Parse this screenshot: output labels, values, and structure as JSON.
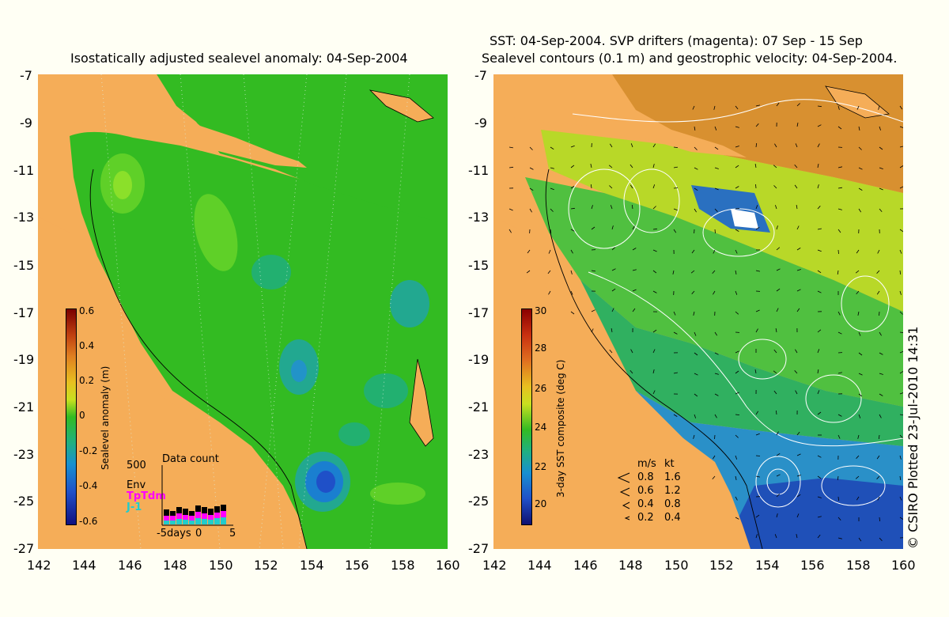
{
  "left_panel": {
    "title": "Isostatically adjusted sealevel anomaly: 04-Sep-2004",
    "colorbar": {
      "label": "Sealevel anomaly (m)",
      "ticks": [
        "0.6",
        "0.4",
        "0.2",
        "0",
        "-0.2",
        "-0.4",
        "-0.6"
      ]
    },
    "data_count": {
      "title": "Data count",
      "max_label": "500",
      "series": [
        "Env",
        "TpTdm",
        "J-1"
      ],
      "x_labels": [
        "-5days",
        "0",
        "5"
      ]
    }
  },
  "right_panel": {
    "title_line1": "SST: 04-Sep-2004. SVP drifters (magenta): 07 Sep - 15 Sep",
    "title_line2": "Sealevel contours (0.1 m) and geostrophic velocity: 04-Sep-2004.",
    "colorbar": {
      "label": "3-day SST composite (deg C)",
      "ticks": [
        "30",
        "28",
        "26",
        "24",
        "22",
        "20"
      ]
    },
    "velocity_legend": {
      "header_ms": "m/s",
      "header_kt": "kt",
      "rows": [
        {
          "ms": "0.8",
          "kt": "1.6"
        },
        {
          "ms": "0.6",
          "kt": "1.2"
        },
        {
          "ms": "0.4",
          "kt": "0.8"
        },
        {
          "ms": "0.2",
          "kt": "0.4"
        }
      ]
    },
    "credit": "© CSIRO Plotted 23-Jul-2010 14:31"
  },
  "axes": {
    "lat_ticks": [
      "-7",
      "-9",
      "-11",
      "-13",
      "-15",
      "-17",
      "-19",
      "-21",
      "-23",
      "-25",
      "-27"
    ],
    "lon_ticks": [
      "142",
      "144",
      "146",
      "148",
      "150",
      "152",
      "154",
      "156",
      "158",
      "160"
    ]
  },
  "colors": {
    "land": "#f5ad58",
    "background": "#fffff4",
    "sla_base": "#33bb22",
    "drifter": "#ff00ff"
  }
}
